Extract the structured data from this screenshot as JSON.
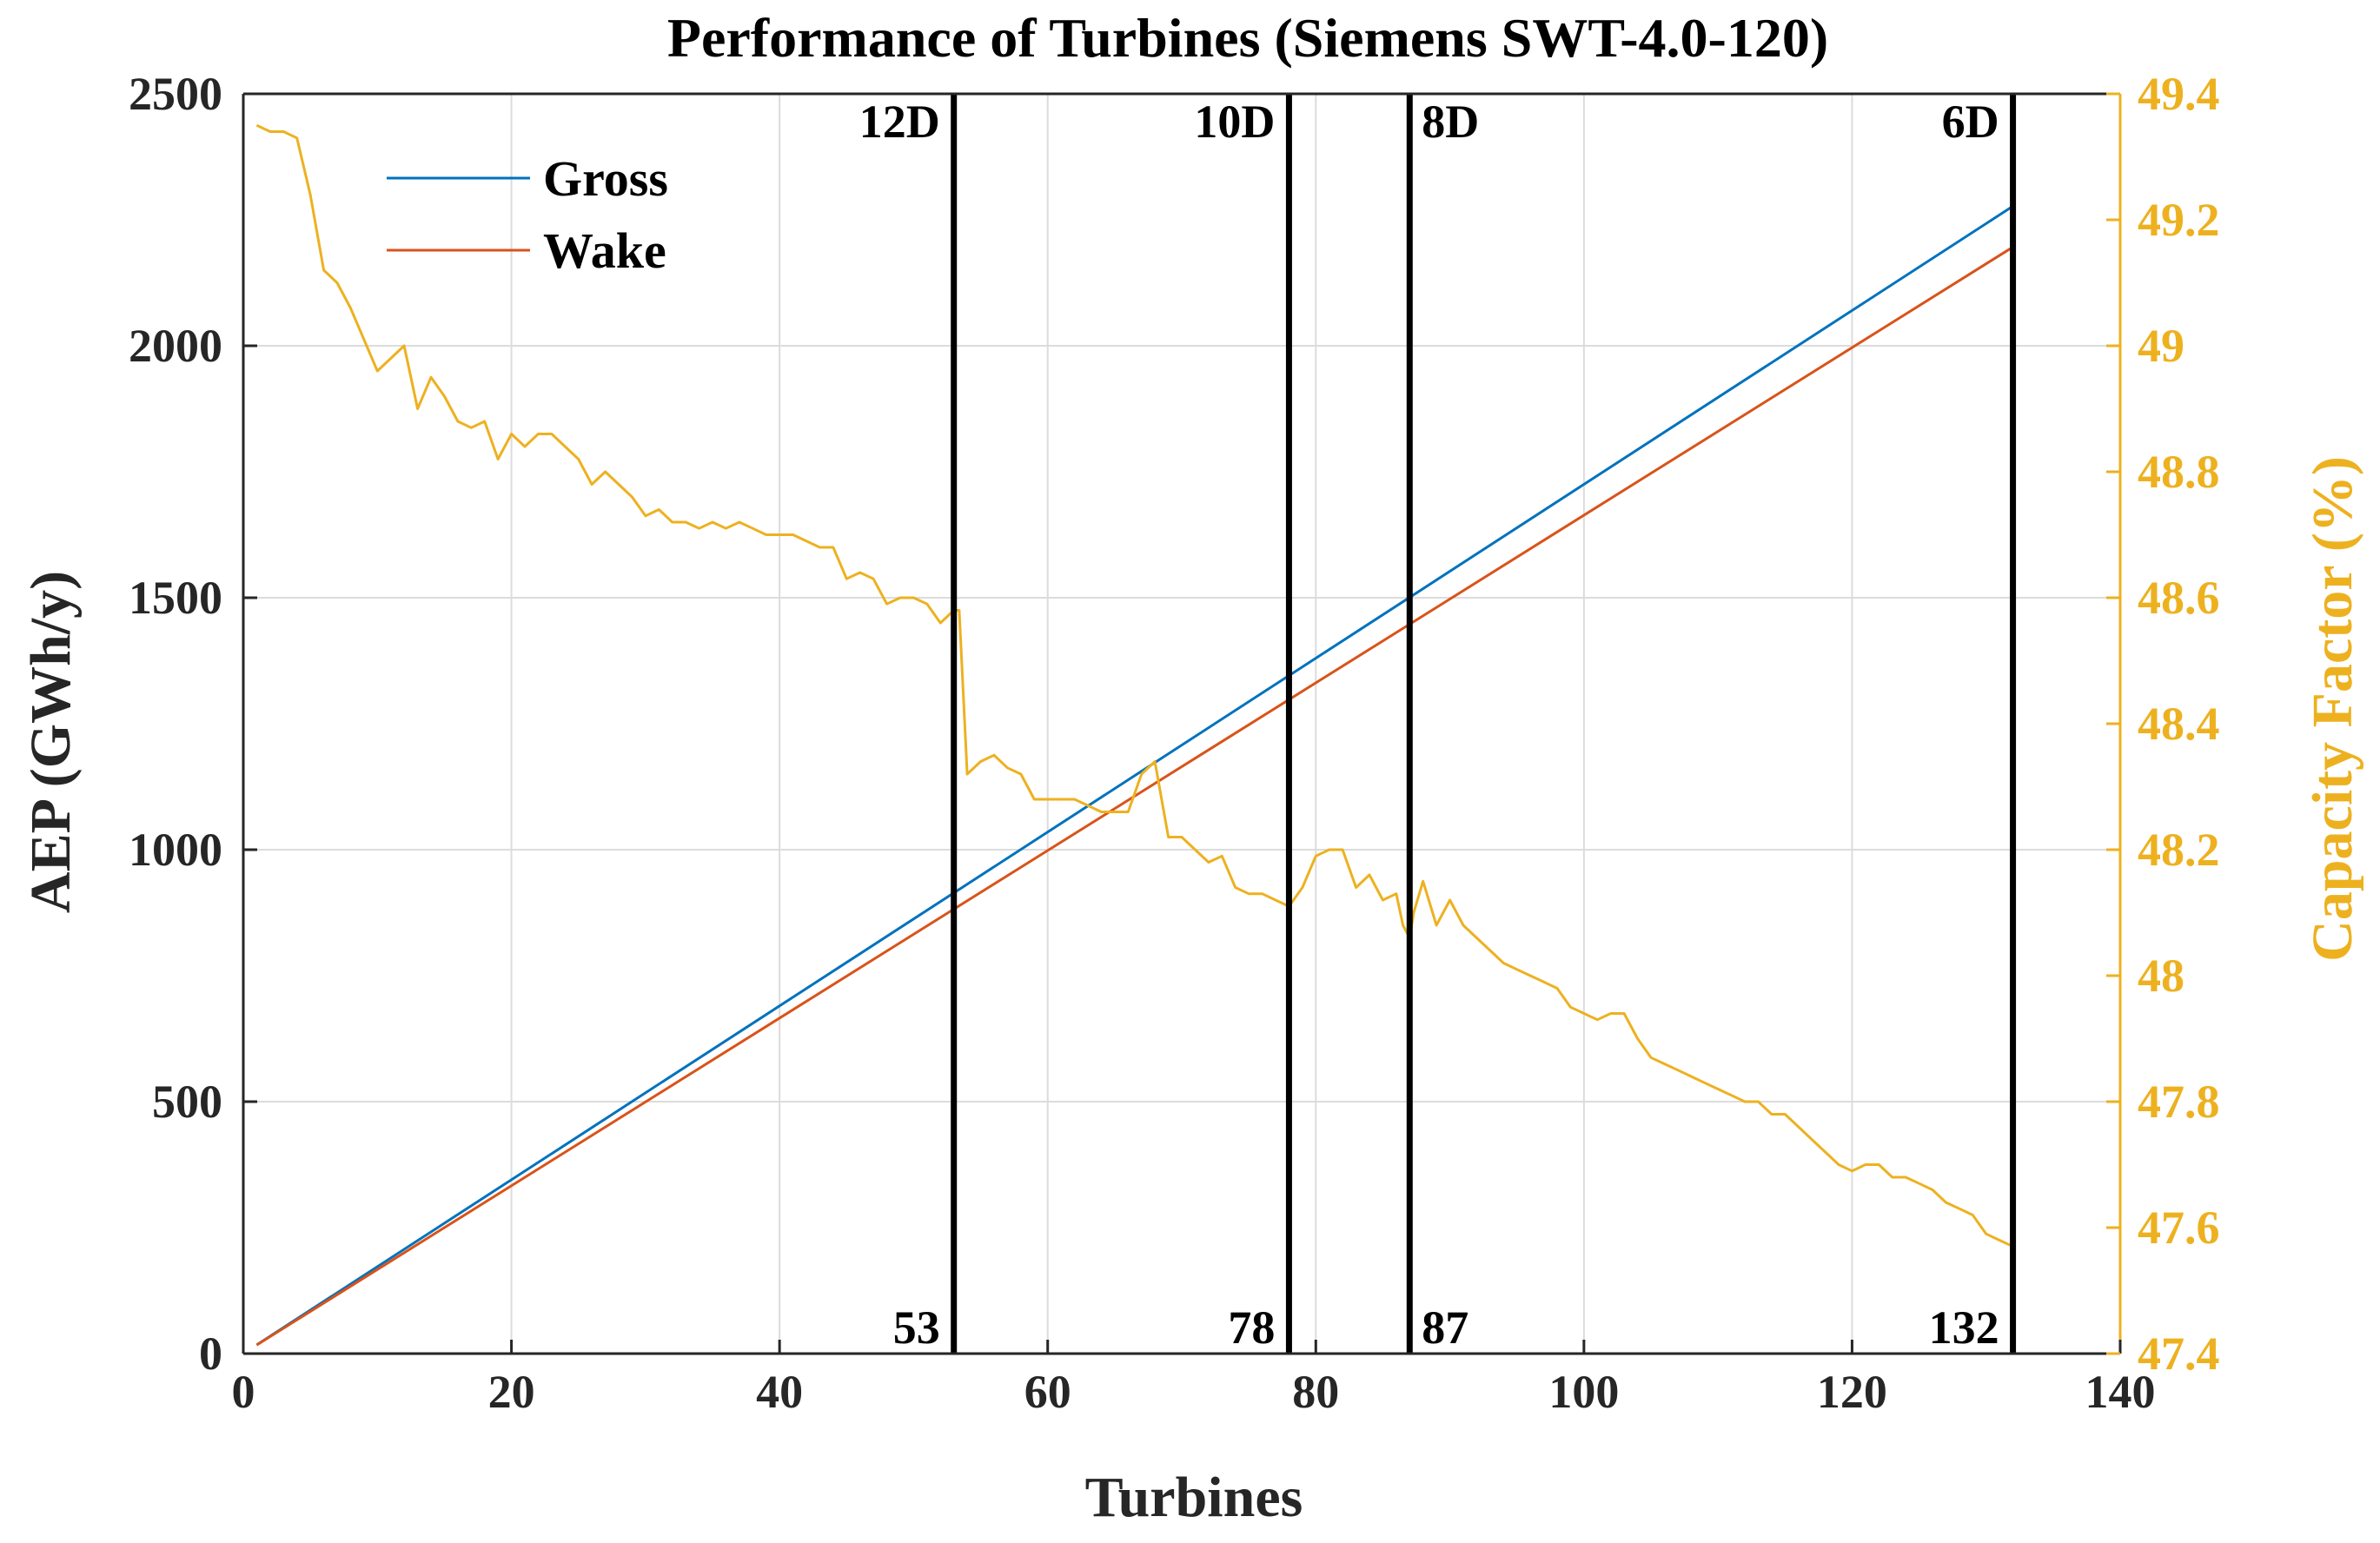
{
  "chart_data": {
    "type": "line",
    "title": "Performance of Turbines (Siemens SWT-4.0-120)",
    "xlabel": "Turbines",
    "ylabel": "AEP (GWh/y)",
    "y2label": "Capacity Factor (%)",
    "xlim": [
      0,
      140
    ],
    "ylim": [
      0,
      2500
    ],
    "y2lim": [
      47.4,
      49.4
    ],
    "xticks": [
      0,
      20,
      40,
      60,
      80,
      100,
      120,
      140
    ],
    "yticks": [
      0,
      500,
      1000,
      1500,
      2000,
      2500
    ],
    "y2ticks": [
      47.4,
      47.6,
      47.8,
      48,
      48.2,
      48.4,
      48.6,
      48.8,
      49,
      49.2,
      49.4
    ],
    "grid": true,
    "legend_position": "top-left",
    "colors": {
      "gross": "#0072BD",
      "wake": "#D95319",
      "capacity": "#EDB120",
      "axis": "#262626",
      "grid": "#dcdcdc",
      "marker": "#000000"
    },
    "series": [
      {
        "name": "Gross",
        "axis": "left",
        "x": [
          1,
          132
        ],
        "values": [
          17.3,
          2277
        ]
      },
      {
        "name": "Wake",
        "axis": "left",
        "x": [
          1,
          132
        ],
        "values": [
          17.0,
          2196
        ]
      },
      {
        "name": "",
        "axis": "right",
        "x": [
          1,
          2,
          3,
          4,
          5,
          6,
          7,
          8,
          10,
          12,
          13,
          14,
          15,
          16,
          17,
          18,
          19,
          20,
          21,
          22,
          23,
          25,
          26,
          27,
          28,
          29,
          30,
          31,
          32,
          33,
          34,
          35,
          36,
          37,
          38,
          39,
          40,
          41,
          43,
          44,
          45,
          46,
          47,
          48,
          49,
          50,
          51,
          52,
          53,
          53.4,
          54,
          55,
          56,
          57,
          58,
          59,
          60,
          62,
          63,
          64,
          65,
          66,
          67,
          68,
          69,
          70,
          71,
          72,
          73,
          74,
          75,
          76,
          77,
          78,
          79,
          80,
          81,
          82,
          83,
          84,
          85,
          86,
          86.5,
          87,
          87.3,
          88,
          89,
          90,
          91,
          92,
          93,
          94,
          95,
          96,
          97,
          98,
          99,
          100,
          101,
          102,
          103,
          104,
          105,
          106,
          107,
          108,
          109,
          110,
          111,
          112,
          113,
          114,
          115,
          116,
          117,
          118,
          119,
          120,
          121,
          122,
          123,
          124,
          125,
          126,
          127,
          128,
          129,
          130,
          131,
          132
        ],
        "values": [
          49.35,
          49.34,
          49.34,
          49.33,
          49.24,
          49.12,
          49.1,
          49.06,
          48.96,
          49.0,
          48.9,
          48.95,
          48.92,
          48.88,
          48.87,
          48.88,
          48.82,
          48.86,
          48.84,
          48.86,
          48.86,
          48.82,
          48.78,
          48.8,
          48.78,
          48.76,
          48.73,
          48.74,
          48.72,
          48.72,
          48.71,
          48.72,
          48.71,
          48.72,
          48.71,
          48.7,
          48.7,
          48.7,
          48.68,
          48.68,
          48.63,
          48.64,
          48.63,
          48.59,
          48.6,
          48.6,
          48.59,
          48.56,
          48.58,
          48.58,
          48.32,
          48.34,
          48.35,
          48.33,
          48.32,
          48.28,
          48.28,
          48.28,
          48.27,
          48.26,
          48.26,
          48.26,
          48.32,
          48.34,
          48.22,
          48.22,
          48.2,
          48.18,
          48.19,
          48.14,
          48.13,
          48.13,
          48.12,
          48.11,
          48.14,
          48.19,
          48.2,
          48.2,
          48.14,
          48.16,
          48.12,
          48.13,
          48.08,
          48.06,
          48.1,
          48.15,
          48.08,
          48.12,
          48.08,
          48.06,
          48.04,
          48.02,
          48.01,
          48.0,
          47.99,
          47.98,
          47.95,
          47.94,
          47.93,
          47.94,
          47.94,
          47.9,
          47.87,
          47.86,
          47.85,
          47.84,
          47.83,
          47.82,
          47.81,
          47.8,
          47.8,
          47.78,
          47.78,
          47.76,
          47.74,
          47.72,
          47.7,
          47.69,
          47.7,
          47.7,
          47.68,
          47.68,
          47.67,
          47.66,
          47.64,
          47.63,
          47.62,
          47.59,
          47.58,
          47.57
        ]
      }
    ],
    "markers": [
      {
        "x": 53,
        "top_label": "12D",
        "bottom_label": "53"
      },
      {
        "x": 78,
        "top_label": "10D",
        "bottom_label": "78"
      },
      {
        "x": 87,
        "top_label": "8D",
        "bottom_label": "87"
      },
      {
        "x": 132,
        "top_label": "6D",
        "bottom_label": "132"
      }
    ]
  }
}
